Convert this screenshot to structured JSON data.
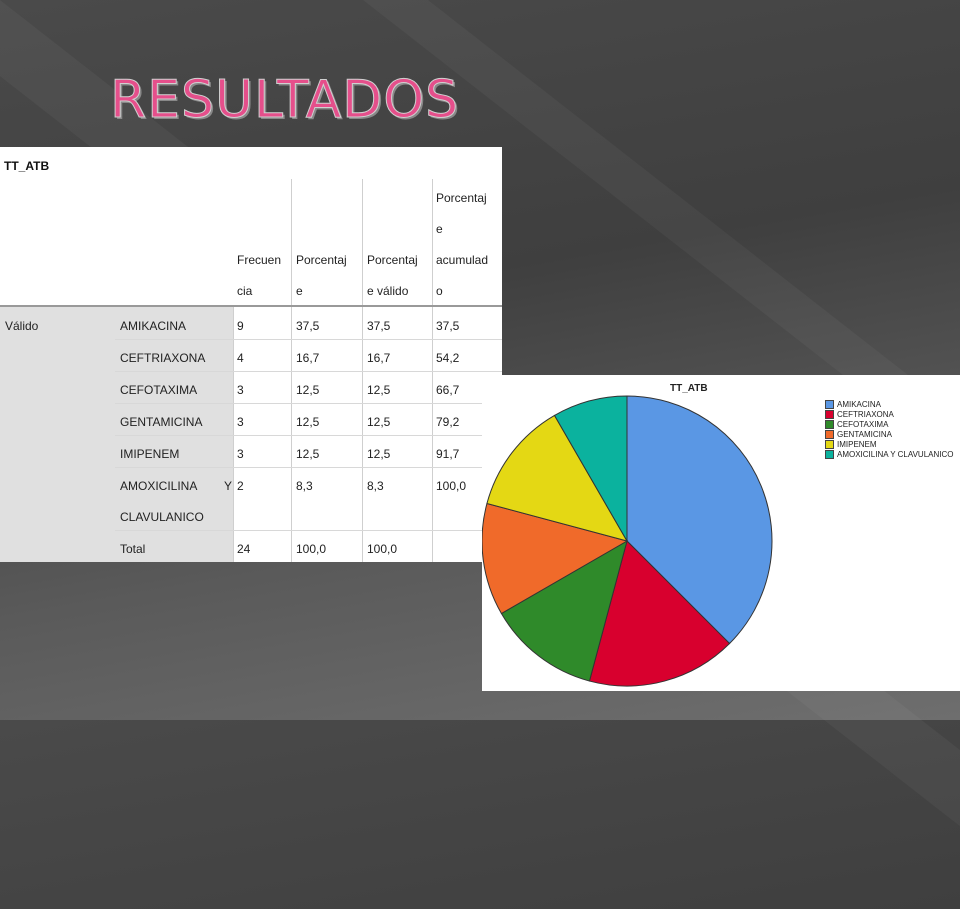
{
  "slide": {
    "title": "RESULTADOS"
  },
  "table": {
    "title": "TT_ATB",
    "headers": {
      "frecuencia": [
        "Frecuen",
        "cia"
      ],
      "porcentaje": [
        "Porcentaj",
        "e"
      ],
      "porcentaje_valido": [
        "Porcentaj",
        "e válido"
      ],
      "porcentaje_acumulado": [
        "Porcentaj",
        "e",
        "acumulad",
        "o"
      ]
    },
    "group_label": "Válido",
    "rows": [
      {
        "label": "AMIKACINA",
        "freq": "9",
        "pct": "37,5",
        "valid": "37,5",
        "cum": "37,5"
      },
      {
        "label": "CEFTRIAXONA",
        "freq": "4",
        "pct": "16,7",
        "valid": "16,7",
        "cum": "54,2"
      },
      {
        "label": "CEFOTAXIMA",
        "freq": "3",
        "pct": "12,5",
        "valid": "12,5",
        "cum": "66,7"
      },
      {
        "label": "GENTAMICINA",
        "freq": "3",
        "pct": "12,5",
        "valid": "12,5",
        "cum": "79,2"
      },
      {
        "label": "IMIPENEM",
        "freq": "3",
        "pct": "12,5",
        "valid": "12,5",
        "cum": "91,7"
      },
      {
        "label_line1": "AMOXICILINA Y",
        "label_line2": "CLAVULANICO",
        "freq": "2",
        "pct": "8,3",
        "valid": "8,3",
        "cum": "100,0"
      }
    ],
    "total": {
      "label": "Total",
      "freq": "24",
      "pct": "100,0",
      "valid": "100,0"
    }
  },
  "chart_data": {
    "type": "pie",
    "title": "TT_ATB",
    "legend_placement": "top-right",
    "categories": [
      "AMIKACINA",
      "CEFTRIAXONA",
      "CEFOTAXIMA",
      "GENTAMICINA",
      "IMIPENEM",
      "AMOXICILINA Y CLAVULANICO"
    ],
    "values": [
      9,
      4,
      3,
      3,
      3,
      2
    ],
    "colors": [
      "#5a97e4",
      "#d8002e",
      "#2f8a2a",
      "#f06a2a",
      "#e4d814",
      "#0bb29e"
    ]
  }
}
